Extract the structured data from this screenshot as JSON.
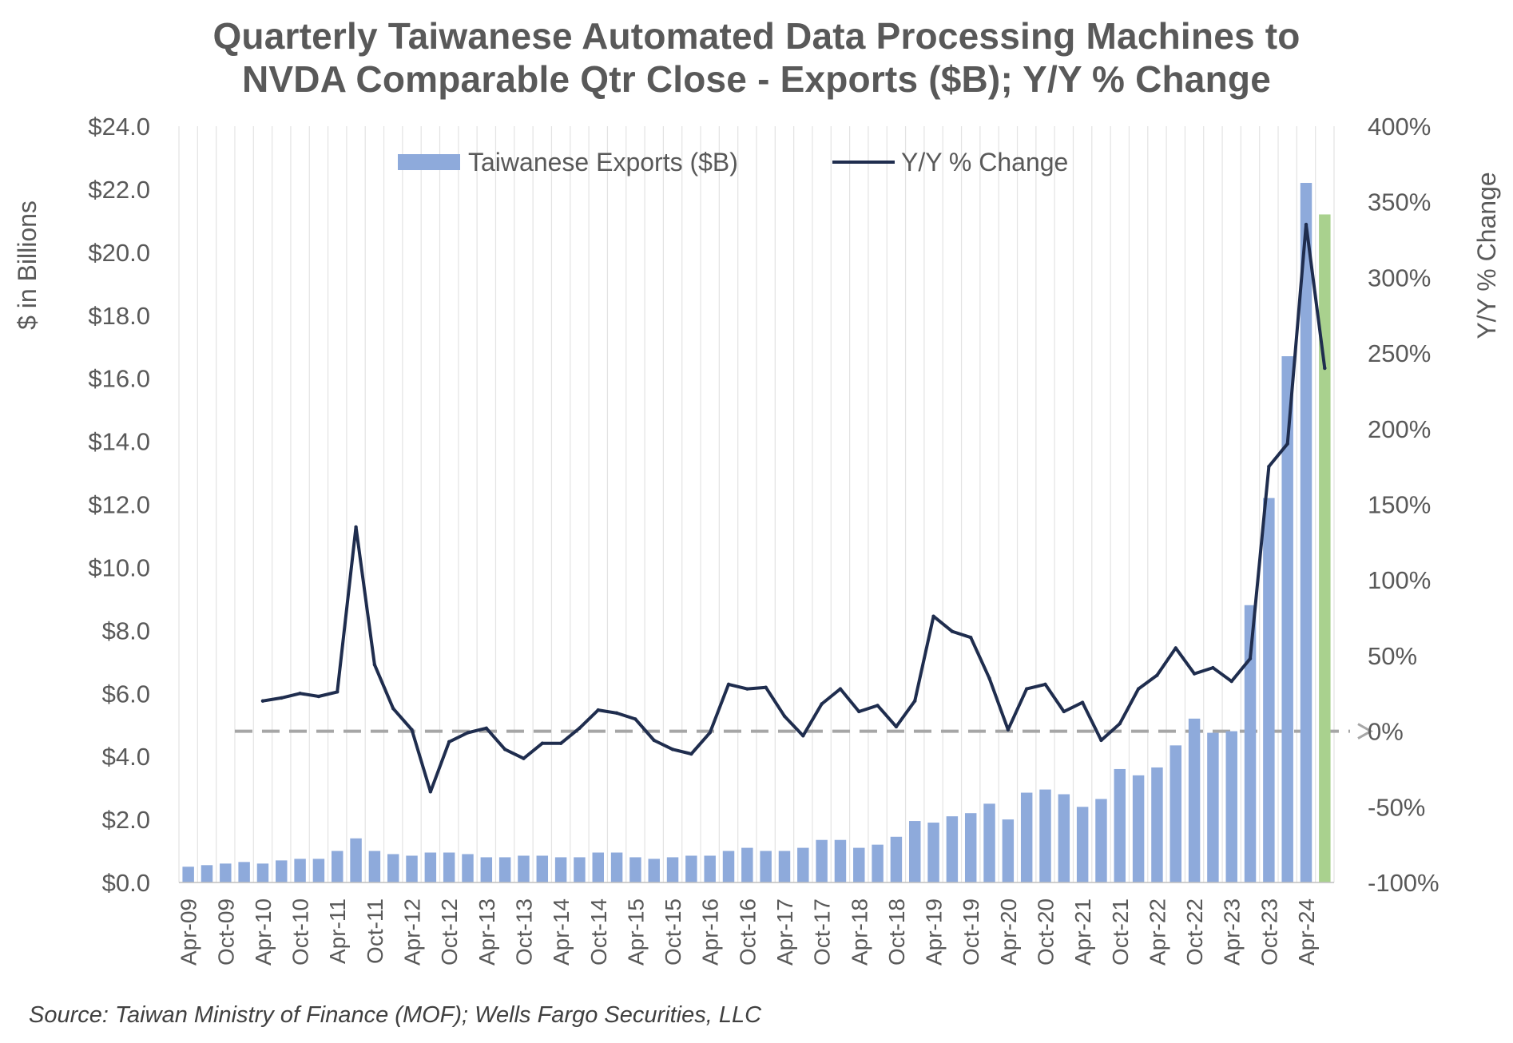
{
  "chart_data": {
    "type": "bar",
    "title_lines": [
      "Quarterly Taiwanese Automated Data Processing Machines to",
      "NVDA Comparable Qtr Close - Exports ($B); Y/Y % Change"
    ],
    "ylabel_left": "$ in Billions",
    "ylabel_right": "Y/Y % Change",
    "ylim_left": [
      0,
      24
    ],
    "ylim_right": [
      -100,
      400
    ],
    "left_ticks": [
      "$0.0",
      "$2.0",
      "$4.0",
      "$6.0",
      "$8.0",
      "$10.0",
      "$12.0",
      "$14.0",
      "$16.0",
      "$18.0",
      "$20.0",
      "$22.0",
      "$24.0"
    ],
    "right_ticks": [
      "-100%",
      "-50%",
      "0%",
      "50%",
      "100%",
      "150%",
      "200%",
      "250%",
      "300%",
      "350%",
      "400%"
    ],
    "x_tick_labels": [
      "Apr-09",
      "Oct-09",
      "Apr-10",
      "Oct-10",
      "Apr-11",
      "Oct-11",
      "Apr-12",
      "Oct-12",
      "Apr-13",
      "Oct-13",
      "Apr-14",
      "Oct-14",
      "Apr-15",
      "Oct-15",
      "Apr-16",
      "Oct-16",
      "Apr-17",
      "Oct-17",
      "Apr-18",
      "Oct-18",
      "Apr-19",
      "Oct-19",
      "Apr-20",
      "Oct-20",
      "Apr-21",
      "Oct-21",
      "Apr-22",
      "Oct-22",
      "Apr-23",
      "Oct-23",
      "Apr-24"
    ],
    "legend": {
      "placement": "top-center",
      "bar_label": "Taiwanese Exports ($B)",
      "line_label": "Y/Y % Change"
    },
    "grid": true,
    "source": "Source: Taiwan Ministry of Finance (MOF); Wells Fargo Securities, LLC",
    "colors": {
      "bar": "#8eaadb",
      "highlight_bar": "#a9d18e",
      "line": "#1f2d4e",
      "zero_line": "#a6a6a6",
      "text": "#595959",
      "grid": "#e3e3e3"
    },
    "series": [
      {
        "name": "Taiwanese Exports ($B)",
        "kind": "bar",
        "axis": "left",
        "values": [
          0.5,
          0.55,
          0.6,
          0.65,
          0.6,
          0.7,
          0.75,
          0.75,
          1.0,
          1.4,
          1.0,
          0.9,
          0.85,
          0.95,
          0.95,
          0.9,
          0.8,
          0.8,
          0.85,
          0.85,
          0.8,
          0.8,
          0.95,
          0.95,
          0.8,
          0.75,
          0.8,
          0.85,
          0.85,
          1.0,
          1.1,
          1.0,
          1.0,
          1.1,
          1.35,
          1.35,
          1.1,
          1.2,
          1.45,
          1.95,
          1.9,
          2.1,
          2.2,
          2.5,
          2.0,
          2.85,
          2.95,
          2.8,
          2.4,
          2.65,
          3.6,
          3.4,
          3.65,
          4.35,
          5.2,
          4.75,
          4.8,
          8.8,
          12.2,
          16.7,
          22.2,
          21.2
        ],
        "highlight_last": true
      },
      {
        "name": "Y/Y % Change",
        "kind": "line",
        "axis": "right",
        "start_index": 4,
        "values": [
          20,
          22,
          25,
          23,
          26,
          135,
          44,
          15,
          1,
          -40,
          -7,
          -1,
          2,
          -12,
          -18,
          -8,
          -8,
          2,
          14,
          12,
          8,
          -6,
          -12,
          -15,
          -1,
          31,
          28,
          29,
          10,
          -3,
          18,
          28,
          13,
          17,
          3,
          20,
          76,
          66,
          62,
          35,
          1,
          28,
          31,
          13,
          19,
          -6,
          5,
          28,
          37,
          55,
          38,
          42,
          33,
          48,
          175,
          190,
          335,
          240
        ]
      }
    ]
  }
}
